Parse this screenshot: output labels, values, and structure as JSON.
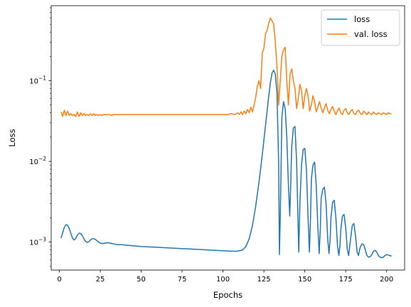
{
  "chart_data": {
    "type": "line",
    "xlabel": "Epochs",
    "ylabel": "Loss",
    "yscale": "log",
    "xlim": [
      -5,
      211
    ],
    "ylim": [
      0.00045,
      0.85
    ],
    "x_ticks": [
      0,
      25,
      50,
      75,
      100,
      125,
      150,
      175,
      200
    ],
    "y_ticks": [
      {
        "value": 0.001,
        "base": "10",
        "exp": "−3"
      },
      {
        "value": 0.01,
        "base": "10",
        "exp": "−2"
      },
      {
        "value": 0.1,
        "base": "10",
        "exp": "−1"
      }
    ],
    "grid": false,
    "legend_position": "top-right",
    "series": [
      {
        "name": "loss",
        "color": "#1f77b4",
        "points": [
          [
            1,
            0.00112
          ],
          [
            2,
            0.0013
          ],
          [
            3,
            0.00152
          ],
          [
            4,
            0.00164
          ],
          [
            5,
            0.00162
          ],
          [
            6,
            0.00148
          ],
          [
            7,
            0.00128
          ],
          [
            8,
            0.00112
          ],
          [
            9,
            0.00106
          ],
          [
            10,
            0.00111
          ],
          [
            11,
            0.00122
          ],
          [
            12,
            0.00129
          ],
          [
            13,
            0.00128
          ],
          [
            14,
            0.0012
          ],
          [
            15,
            0.0011
          ],
          [
            16,
            0.00102
          ],
          [
            17,
            0.00099
          ],
          [
            18,
            0.00101
          ],
          [
            19,
            0.00106
          ],
          [
            20,
            0.0011
          ],
          [
            21,
            0.0011
          ],
          [
            22,
            0.00108
          ],
          [
            23,
            0.00104
          ],
          [
            24,
            0.001
          ],
          [
            25,
            0.00097
          ],
          [
            26,
            0.00096
          ],
          [
            27,
            0.00096
          ],
          [
            28,
            0.00097
          ],
          [
            29,
            0.00098
          ],
          [
            30,
            0.00098
          ],
          [
            31,
            0.00097
          ],
          [
            32,
            0.00096
          ],
          [
            33,
            0.00095
          ],
          [
            34,
            0.00094
          ],
          [
            35,
            0.00093
          ],
          [
            36,
            0.00093
          ],
          [
            38,
            0.00093
          ],
          [
            40,
            0.00092
          ],
          [
            45,
            0.0009
          ],
          [
            50,
            0.00088
          ],
          [
            60,
            0.00086
          ],
          [
            70,
            0.00084
          ],
          [
            80,
            0.00082
          ],
          [
            90,
            0.0008
          ],
          [
            100,
            0.00078
          ],
          [
            105,
            0.00077
          ],
          [
            108,
            0.00077
          ],
          [
            110,
            0.00078
          ],
          [
            112,
            0.0008
          ],
          [
            114,
            0.00088
          ],
          [
            116,
            0.0011
          ],
          [
            118,
            0.0016
          ],
          [
            120,
            0.0028
          ],
          [
            122,
            0.0055
          ],
          [
            124,
            0.012
          ],
          [
            126,
            0.028
          ],
          [
            128,
            0.065
          ],
          [
            129,
            0.095
          ],
          [
            130,
            0.125
          ],
          [
            131,
            0.135
          ],
          [
            132,
            0.12
          ],
          [
            133,
            0.07
          ],
          [
            134,
            0.01
          ],
          [
            134.5,
            0.0007
          ],
          [
            135,
            0.002
          ],
          [
            136,
            0.035
          ],
          [
            137,
            0.055
          ],
          [
            138,
            0.045
          ],
          [
            139,
            0.02
          ],
          [
            140,
            0.005
          ],
          [
            140.8,
            0.0021
          ],
          [
            141.5,
            0.006
          ],
          [
            142,
            0.015
          ],
          [
            143,
            0.026
          ],
          [
            144,
            0.027
          ],
          [
            145,
            0.01
          ],
          [
            146.3,
            0.00075
          ],
          [
            147,
            0.003
          ],
          [
            148,
            0.009
          ],
          [
            149,
            0.014
          ],
          [
            150,
            0.0145
          ],
          [
            151,
            0.008
          ],
          [
            152,
            0.002
          ],
          [
            152.8,
            0.00075
          ],
          [
            153.5,
            0.002
          ],
          [
            154,
            0.006
          ],
          [
            155,
            0.009
          ],
          [
            156,
            0.0098
          ],
          [
            157,
            0.005
          ],
          [
            158,
            0.0015
          ],
          [
            158.8,
            0.00072
          ],
          [
            159.5,
            0.0015
          ],
          [
            160,
            0.0035
          ],
          [
            161,
            0.0045
          ],
          [
            162,
            0.0048
          ],
          [
            163,
            0.003
          ],
          [
            164,
            0.0011
          ],
          [
            164.8,
            0.00072
          ],
          [
            165.5,
            0.0011
          ],
          [
            166,
            0.002
          ],
          [
            167,
            0.0031
          ],
          [
            168,
            0.0033
          ],
          [
            169,
            0.002
          ],
          [
            170,
            0.0009
          ],
          [
            170.8,
            0.00068
          ],
          [
            171.5,
            0.0009
          ],
          [
            172,
            0.0014
          ],
          [
            173,
            0.0021
          ],
          [
            174,
            0.0022
          ],
          [
            175,
            0.0015
          ],
          [
            176,
            0.0008
          ],
          [
            176.8,
            0.00068
          ],
          [
            177.5,
            0.0009
          ],
          [
            178,
            0.0011
          ],
          [
            179,
            0.0016
          ],
          [
            180,
            0.0017
          ],
          [
            181,
            0.0012
          ],
          [
            182,
            0.00075
          ],
          [
            182.8,
            0.00068
          ],
          [
            183.5,
            0.0008
          ],
          [
            184,
            0.00088
          ],
          [
            185,
            0.00095
          ],
          [
            186,
            0.00093
          ],
          [
            187,
            0.0008
          ],
          [
            188,
            0.00068
          ],
          [
            189,
            0.00065
          ],
          [
            190,
            0.00066
          ],
          [
            191,
            0.0007
          ],
          [
            192,
            0.00077
          ],
          [
            193,
            0.00079
          ],
          [
            194,
            0.00075
          ],
          [
            195,
            0.00068
          ],
          [
            196,
            0.00065
          ],
          [
            197,
            0.00064
          ],
          [
            198,
            0.00065
          ],
          [
            199,
            0.00068
          ],
          [
            200,
            0.0007
          ],
          [
            201,
            0.00069
          ],
          [
            202,
            0.00068
          ],
          [
            203,
            0.00067
          ]
        ]
      },
      {
        "name": "val. loss",
        "color": "#ff7f0e",
        "points": [
          [
            1,
            0.041
          ],
          [
            2,
            0.036
          ],
          [
            3,
            0.043
          ],
          [
            4,
            0.037
          ],
          [
            5,
            0.042
          ],
          [
            6,
            0.037
          ],
          [
            7,
            0.039
          ],
          [
            8,
            0.037
          ],
          [
            9,
            0.038
          ],
          [
            10,
            0.036
          ],
          [
            11,
            0.041
          ],
          [
            12,
            0.036
          ],
          [
            13,
            0.04
          ],
          [
            14,
            0.037
          ],
          [
            15,
            0.039
          ],
          [
            16,
            0.037
          ],
          [
            17,
            0.038
          ],
          [
            18,
            0.037
          ],
          [
            19,
            0.039
          ],
          [
            20,
            0.037
          ],
          [
            21,
            0.039
          ],
          [
            22,
            0.037
          ],
          [
            23,
            0.038
          ],
          [
            24,
            0.037
          ],
          [
            25,
            0.038
          ],
          [
            26,
            0.037
          ],
          [
            27,
            0.038
          ],
          [
            28,
            0.038
          ],
          [
            29,
            0.038
          ],
          [
            30,
            0.038
          ],
          [
            31,
            0.038
          ],
          [
            32,
            0.037
          ],
          [
            33,
            0.038
          ],
          [
            34,
            0.038
          ],
          [
            35,
            0.038
          ],
          [
            40,
            0.038
          ],
          [
            45,
            0.038
          ],
          [
            50,
            0.038
          ],
          [
            55,
            0.038
          ],
          [
            60,
            0.038
          ],
          [
            65,
            0.038
          ],
          [
            70,
            0.038
          ],
          [
            75,
            0.038
          ],
          [
            80,
            0.038
          ],
          [
            85,
            0.038
          ],
          [
            90,
            0.038
          ],
          [
            95,
            0.038
          ],
          [
            100,
            0.038
          ],
          [
            103,
            0.038
          ],
          [
            105,
            0.039
          ],
          [
            107,
            0.038
          ],
          [
            109,
            0.04
          ],
          [
            110,
            0.038
          ],
          [
            111,
            0.041
          ],
          [
            112,
            0.038
          ],
          [
            113,
            0.042
          ],
          [
            114,
            0.039
          ],
          [
            115,
            0.044
          ],
          [
            116,
            0.04
          ],
          [
            117,
            0.047
          ],
          [
            118,
            0.041
          ],
          [
            119,
            0.05
          ],
          [
            120,
            0.062
          ],
          [
            121,
            0.085
          ],
          [
            122,
            0.1
          ],
          [
            123,
            0.08
          ],
          [
            124,
            0.22
          ],
          [
            125,
            0.25
          ],
          [
            126,
            0.38
          ],
          [
            127,
            0.42
          ],
          [
            128,
            0.52
          ],
          [
            129,
            0.6
          ],
          [
            130,
            0.55
          ],
          [
            131,
            0.5
          ],
          [
            132,
            0.3
          ],
          [
            133,
            0.15
          ],
          [
            134,
            0.05
          ],
          [
            135,
            0.1
          ],
          [
            136,
            0.2
          ],
          [
            137,
            0.24
          ],
          [
            138,
            0.26
          ],
          [
            139,
            0.1
          ],
          [
            140,
            0.05
          ],
          [
            141,
            0.12
          ],
          [
            142,
            0.14
          ],
          [
            143,
            0.1
          ],
          [
            144,
            0.08
          ],
          [
            145,
            0.045
          ],
          [
            146,
            0.06
          ],
          [
            147,
            0.09
          ],
          [
            148,
            0.075
          ],
          [
            149,
            0.045
          ],
          [
            150,
            0.065
          ],
          [
            151,
            0.08
          ],
          [
            152,
            0.065
          ],
          [
            153,
            0.042
          ],
          [
            154,
            0.05
          ],
          [
            155,
            0.065
          ],
          [
            156,
            0.055
          ],
          [
            157,
            0.041
          ],
          [
            158,
            0.047
          ],
          [
            159,
            0.055
          ],
          [
            160,
            0.046
          ],
          [
            161,
            0.04
          ],
          [
            162,
            0.046
          ],
          [
            163,
            0.052
          ],
          [
            164,
            0.043
          ],
          [
            165,
            0.039
          ],
          [
            166,
            0.044
          ],
          [
            167,
            0.048
          ],
          [
            168,
            0.042
          ],
          [
            169,
            0.038
          ],
          [
            170,
            0.043
          ],
          [
            171,
            0.046
          ],
          [
            172,
            0.04
          ],
          [
            173,
            0.038
          ],
          [
            174,
            0.043
          ],
          [
            175,
            0.045
          ],
          [
            176,
            0.04
          ],
          [
            177,
            0.038
          ],
          [
            178,
            0.042
          ],
          [
            179,
            0.044
          ],
          [
            180,
            0.039
          ],
          [
            181,
            0.038
          ],
          [
            182,
            0.042
          ],
          [
            183,
            0.043
          ],
          [
            184,
            0.039
          ],
          [
            185,
            0.038
          ],
          [
            186,
            0.042
          ],
          [
            187,
            0.04
          ],
          [
            188,
            0.038
          ],
          [
            189,
            0.041
          ],
          [
            190,
            0.039
          ],
          [
            191,
            0.038
          ],
          [
            192,
            0.041
          ],
          [
            193,
            0.039
          ],
          [
            194,
            0.038
          ],
          [
            195,
            0.04
          ],
          [
            196,
            0.039
          ],
          [
            197,
            0.038
          ],
          [
            198,
            0.04
          ],
          [
            199,
            0.039
          ],
          [
            200,
            0.038
          ],
          [
            201,
            0.04
          ],
          [
            202,
            0.039
          ],
          [
            203,
            0.039
          ]
        ]
      }
    ]
  }
}
